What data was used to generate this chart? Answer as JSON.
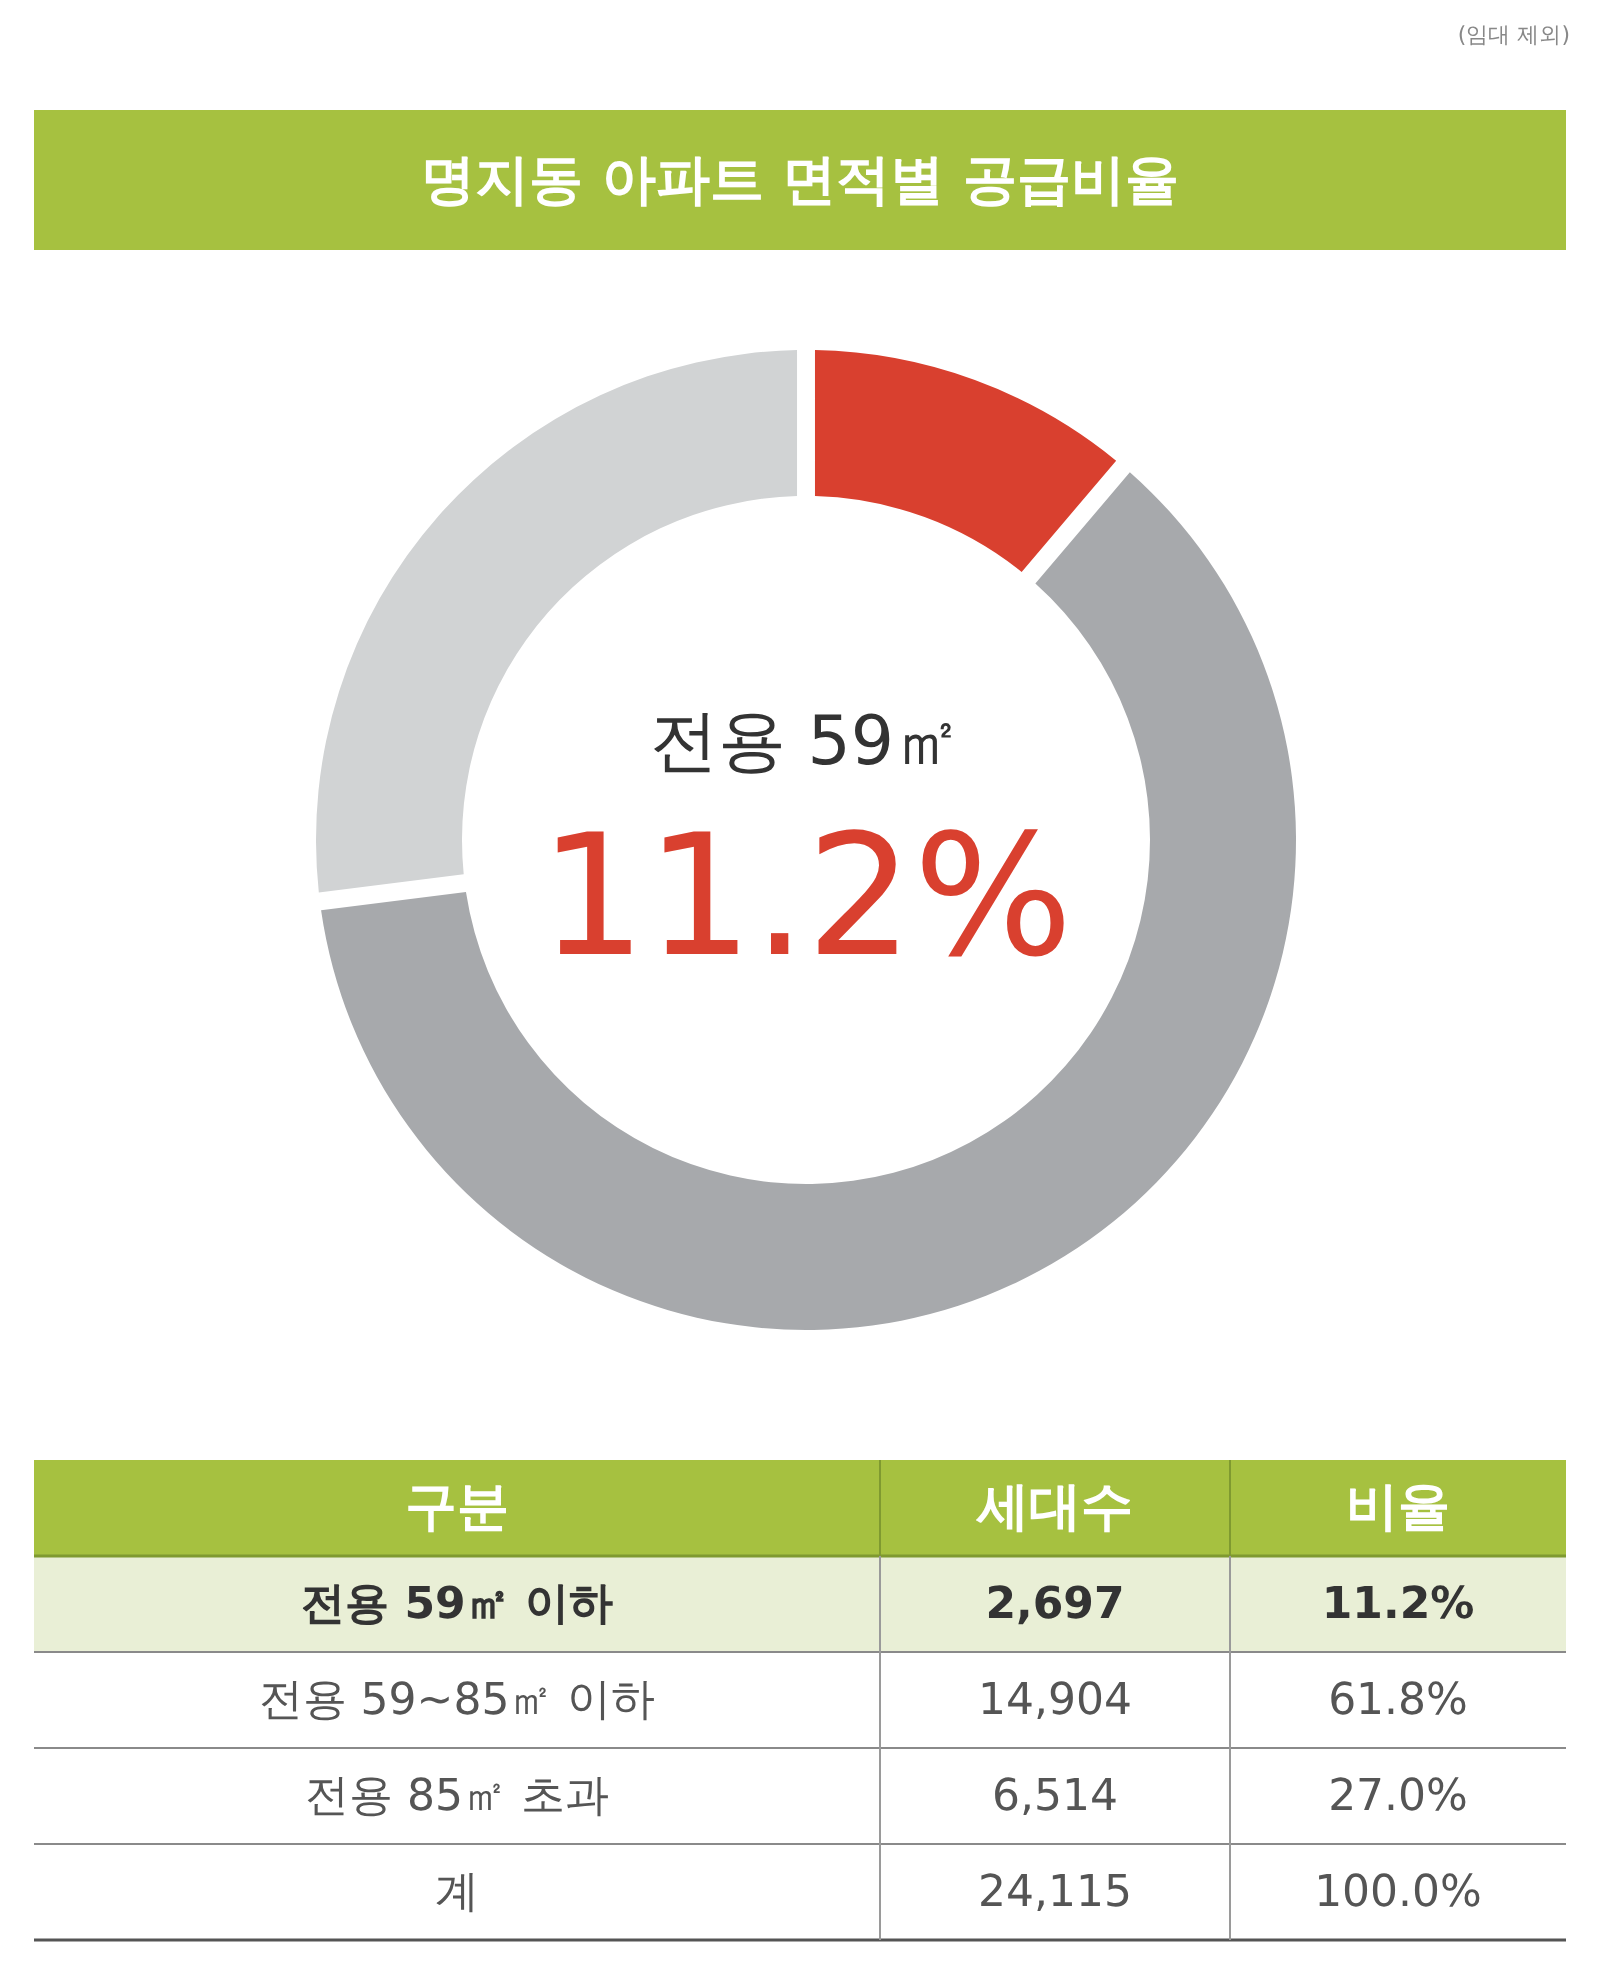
{
  "chart_data": [
    {
      "type": "donut",
      "title": "명지동 아파트 면적별 공급비율",
      "categories": [
        null,
        null,
        null
      ],
      "values": [
        11.2,
        61.8,
        27.0
      ],
      "colors": [
        "#d9402f",
        "#a7a9ac",
        "#d1d3d4"
      ],
      "annotations": [
        "(임대 제외)",
        "전용 59㎡",
        "11.2%"
      ]
    },
    {
      "type": "other",
      "annotations": [
        "구분",
        "세대수",
        "비율",
        "전용 59㎡ 이하",
        "2,697",
        "11.2%",
        "전용 59~85㎡ 이하",
        "14,904",
        "61.8%",
        "전용 85㎡ 초과",
        "6,514",
        "27.0%",
        "계",
        "24,115",
        "100.0%"
      ]
    }
  ]
}
